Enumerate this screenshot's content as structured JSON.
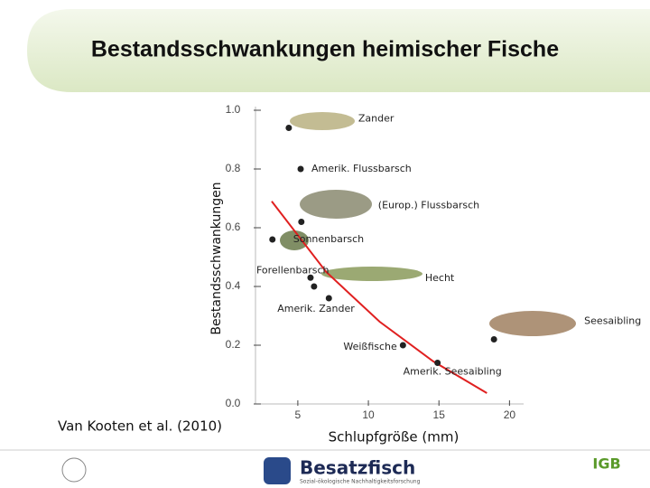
{
  "chart_data": {
    "type": "scatter",
    "title": "Bestandsschwankungen heimischer Fische",
    "ylabel": "Bestandsschwankungen",
    "xlabel": "Schlupfgröße (mm)",
    "source": "Van Kooten et al. (2010)",
    "xlim": [
      2,
      21
    ],
    "ylim": [
      0,
      1
    ],
    "xticks": [
      5,
      10,
      15,
      20
    ],
    "yticks": [
      {
        "value": 0,
        "label": "0.0"
      },
      0.2,
      0.4,
      0.6,
      0.8,
      {
        "value": 1,
        "label": "1.0"
      }
    ],
    "series": [
      {
        "color": "#222222",
        "x": [
          4.36,
          5.2,
          5.25,
          3.2,
          5.9,
          6.15,
          7.2,
          12.45,
          14.9,
          18.9
        ],
        "values": [
          0.94,
          0.8,
          0.62,
          0.56,
          0.43,
          0.4,
          0.36,
          0.2,
          0.14,
          0.22
        ],
        "labels": [
          "Zander",
          "Amerik. Flussbarsch",
          "(Europ.) Flussbarsch",
          "Sonnenbarsch",
          "Forellenbarsch",
          "Hecht",
          "Amerik. Zander",
          "Weißfische",
          "Amerik. Seesaibling",
          "Seesaibling"
        ]
      }
    ],
    "trend": {
      "color": "#e02020",
      "x": [
        3.15,
        7,
        10.8,
        14.6,
        18.4
      ],
      "values": [
        0.69,
        0.45,
        0.28,
        0.145,
        0.037
      ]
    }
  },
  "footer": {
    "logo": "Besatzfisch",
    "tagline": "Sozial-ökologische Nachhaltigkeitsforschung",
    "partner": "IGB"
  }
}
